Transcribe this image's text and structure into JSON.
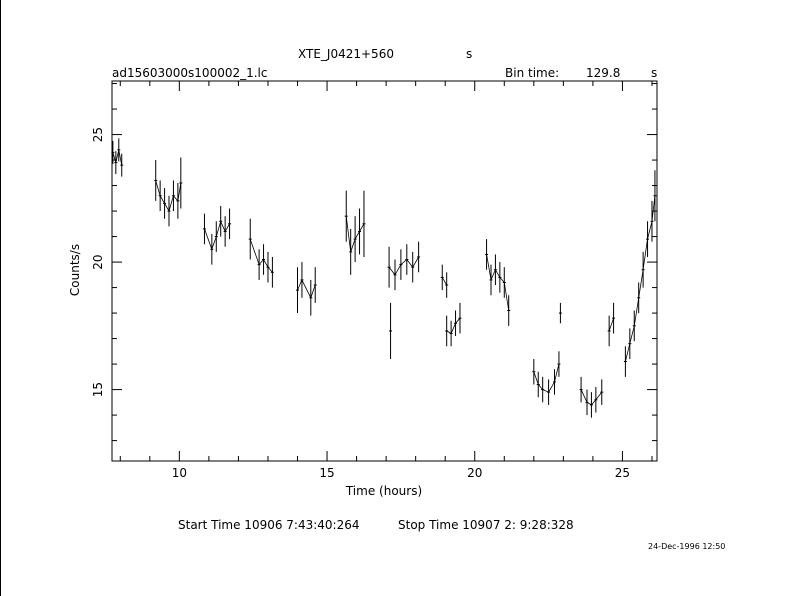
{
  "header": {
    "source": "XTE_J0421+560",
    "source_unit": "s",
    "file": "ad15603000s100002_1.lc",
    "bin_label": "Bin time:",
    "bin_value": "129.8",
    "bin_unit": "s"
  },
  "footer": {
    "start": "Start Time 10906  7:43:40:264",
    "stop": "Stop Time 10907  2: 9:28:328",
    "stamp": "24-Dec-1996 12:50"
  },
  "chart_data": {
    "type": "scatter",
    "xlabel": "Time (hours)",
    "ylabel": "Counts/s",
    "xlim": [
      7.72,
      26.17
    ],
    "ylim": [
      12.2,
      27.1
    ],
    "xticks": [
      10,
      15,
      20,
      25
    ],
    "yticks": [
      15,
      20,
      25
    ],
    "grid": false,
    "error_bars": "vertical",
    "segments": [
      {
        "x": [
          7.75,
          7.85,
          7.95,
          8.05
        ],
        "y": [
          24.3,
          23.9,
          24.4,
          23.8
        ],
        "err": [
          0.45,
          0.45,
          0.45,
          0.45
        ]
      },
      {
        "x": [
          9.2,
          9.35,
          9.5,
          9.65,
          9.8,
          9.95,
          10.05
        ],
        "y": [
          23.2,
          22.6,
          22.3,
          22.0,
          22.6,
          22.4,
          23.1
        ],
        "err": [
          0.8,
          0.6,
          0.6,
          0.6,
          0.6,
          0.7,
          1.0
        ]
      },
      {
        "x": [
          10.85,
          11.1,
          11.25,
          11.4,
          11.55,
          11.7
        ],
        "y": [
          21.3,
          20.5,
          21.0,
          21.6,
          21.2,
          21.5
        ],
        "err": [
          0.6,
          0.6,
          0.6,
          0.6,
          0.6,
          0.6
        ]
      },
      {
        "x": [
          12.4,
          12.7,
          12.85,
          13.0,
          13.15
        ],
        "y": [
          20.9,
          19.9,
          20.1,
          19.8,
          19.6
        ],
        "err": [
          0.8,
          0.6,
          0.6,
          0.6,
          0.6
        ]
      },
      {
        "x": [
          14.0,
          14.15,
          14.45,
          14.6
        ],
        "y": [
          18.9,
          19.3,
          18.6,
          19.1
        ],
        "err": [
          0.9,
          0.7,
          0.7,
          0.7
        ]
      },
      {
        "x": [
          15.65,
          15.8,
          15.95,
          16.1,
          16.25
        ],
        "y": [
          21.8,
          20.4,
          20.9,
          21.2,
          21.5
        ],
        "err": [
          1.0,
          0.9,
          0.9,
          0.9,
          1.3
        ]
      },
      {
        "x": [
          17.1,
          17.3,
          17.5,
          17.7,
          17.9,
          18.1
        ],
        "y": [
          19.8,
          19.5,
          19.9,
          20.1,
          19.8,
          20.2
        ],
        "err": [
          0.8,
          0.6,
          0.6,
          0.6,
          0.6,
          0.6
        ]
      },
      {
        "x": [
          17.15
        ],
        "y": [
          17.3
        ],
        "err": [
          1.1
        ]
      },
      {
        "x": [
          18.9,
          19.05
        ],
        "y": [
          19.4,
          19.1
        ],
        "err": [
          0.5,
          0.5
        ]
      },
      {
        "x": [
          19.05,
          19.2,
          19.35,
          19.5
        ],
        "y": [
          17.3,
          17.2,
          17.6,
          17.8
        ],
        "err": [
          0.6,
          0.5,
          0.5,
          0.6
        ]
      },
      {
        "x": [
          20.4,
          20.55,
          20.7,
          20.85,
          21.0,
          21.15
        ],
        "y": [
          20.3,
          19.3,
          19.7,
          19.4,
          19.2,
          18.1
        ],
        "err": [
          0.6,
          0.6,
          0.6,
          0.6,
          0.6,
          0.6
        ]
      },
      {
        "x": [
          22.0,
          22.15,
          22.3,
          22.5,
          22.7,
          22.85
        ],
        "y": [
          15.7,
          15.2,
          15.0,
          14.9,
          15.3,
          16.0
        ],
        "err": [
          0.5,
          0.5,
          0.5,
          0.5,
          0.5,
          0.5
        ]
      },
      {
        "x": [
          22.9
        ],
        "y": [
          18.0
        ],
        "err": [
          0.4
        ]
      },
      {
        "x": [
          23.6,
          23.8,
          23.95,
          24.1,
          24.3
        ],
        "y": [
          15.0,
          14.5,
          14.4,
          14.6,
          14.9
        ],
        "err": [
          0.5,
          0.5,
          0.5,
          0.5,
          0.5
        ]
      },
      {
        "x": [
          24.55,
          24.7
        ],
        "y": [
          17.3,
          17.8
        ],
        "err": [
          0.6,
          0.6
        ]
      },
      {
        "x": [
          25.1,
          25.25,
          25.4,
          25.55,
          25.7,
          25.85,
          26.0,
          26.1
        ],
        "y": [
          16.1,
          16.8,
          17.5,
          18.6,
          19.7,
          20.9,
          21.6,
          22.6
        ],
        "err": [
          0.6,
          0.6,
          0.6,
          0.6,
          0.7,
          0.7,
          0.8,
          1.0
        ]
      }
    ]
  }
}
